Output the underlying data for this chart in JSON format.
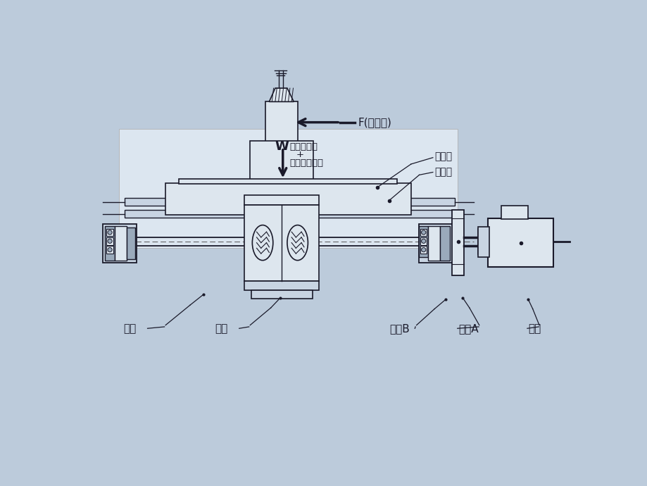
{
  "bg_color": "#bccbdb",
  "line_color": "#1a1a2a",
  "fill_light": "#c8d4e2",
  "fill_mid": "#9aaabb",
  "fill_white": "#dde6ee",
  "labels": {
    "F": "F(切削力)",
    "W": "W",
    "weight_line1": "工件的重量",
    "weight_line2": "+",
    "weight_line3": "工作台的重量",
    "worktable": "工作台",
    "guideway": "导轨副",
    "screw": "螺杆",
    "nut": "螺帽",
    "gear_b": "齿轮B",
    "gear_a": "齿轮A",
    "motor": "马达"
  }
}
